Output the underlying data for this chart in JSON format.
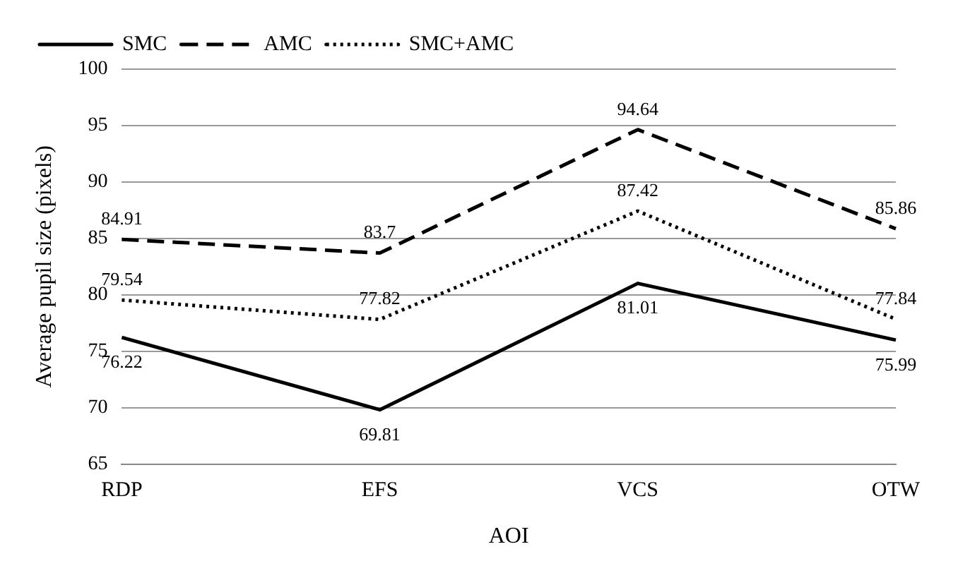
{
  "chart_data": {
    "type": "line",
    "xlabel": "AOI",
    "ylabel": "Average pupil size (pixels)",
    "categories": [
      "RDP",
      "EFS",
      "VCS",
      "OTW"
    ],
    "series": [
      {
        "name": "SMC",
        "color": "#000000",
        "line_style": "solid",
        "values": [
          76.22,
          69.81,
          81.01,
          75.99
        ]
      },
      {
        "name": "AMC",
        "color": "#000000",
        "line_style": "dashed",
        "values": [
          84.91,
          83.7,
          94.64,
          85.86
        ]
      },
      {
        "name": "SMC+AMC",
        "color": "#000000",
        "line_style": "dotted",
        "values": [
          79.54,
          77.82,
          87.42,
          77.84
        ]
      }
    ],
    "ylim": [
      65,
      100
    ],
    "yticks": [
      65,
      70,
      75,
      80,
      85,
      90,
      95,
      100
    ],
    "grid": "y",
    "legend": "top left",
    "marker": "none",
    "data_labels": true
  }
}
